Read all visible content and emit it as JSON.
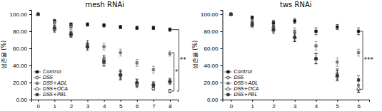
{
  "chart_data": [
    {
      "type": "scatter",
      "title": "mesh RNAi",
      "y_label": "생존율 (%)",
      "x": [
        0,
        1,
        2,
        3,
        4,
        5,
        6,
        7,
        8
      ],
      "xlim": [
        -0.4,
        8.5
      ],
      "xticks": [
        0,
        1,
        2,
        3,
        4,
        5,
        6,
        7,
        8
      ],
      "ylim": [
        0,
        105
      ],
      "yticks": [
        {
          "value": 0,
          "label": "0.00"
        },
        {
          "value": 20,
          "label": "20.00"
        },
        {
          "value": 40,
          "label": "40.00"
        },
        {
          "value": 60,
          "label": "60.00"
        },
        {
          "value": 80,
          "label": "80.00"
        },
        {
          "value": 100,
          "label": "100.00"
        }
      ],
      "legend": "lower left",
      "grid": false,
      "series": [
        {
          "name": "Control",
          "color": "#111111",
          "marker": "square",
          "values": [
            100,
            92,
            88,
            88,
            87,
            85,
            84,
            84,
            82
          ],
          "errors": [
            0,
            2,
            2,
            2,
            2,
            2,
            2,
            2,
            2
          ]
        },
        {
          "name": "DSS",
          "color": "#111111",
          "marker": "circle-open",
          "values": [
            100,
            82,
            76,
            65,
            47,
            28,
            17,
            13,
            10
          ],
          "errors": [
            0,
            3,
            3,
            4,
            5,
            5,
            3,
            2,
            2
          ]
        },
        {
          "name": "DSS+ADL",
          "color": "#777777",
          "marker": "square",
          "values": [
            100,
            90,
            85,
            63,
            62,
            55,
            43,
            35,
            54
          ],
          "errors": [
            0,
            2,
            3,
            3,
            4,
            4,
            4,
            4,
            3
          ]
        },
        {
          "name": "DSS+OCA",
          "color": "#444444",
          "marker": "triangle-open",
          "values": [
            100,
            84,
            77,
            62,
            44,
            30,
            20,
            18,
            22
          ],
          "errors": [
            0,
            3,
            3,
            4,
            5,
            5,
            4,
            3,
            3
          ]
        },
        {
          "name": "DSS+PBL",
          "color": "#333333",
          "marker": "square",
          "values": [
            100,
            84,
            77,
            62,
            45,
            29,
            20,
            17,
            21
          ],
          "errors": [
            0,
            3,
            3,
            4,
            5,
            5,
            4,
            3,
            3
          ]
        }
      ],
      "annotations": [
        {
          "text": "*",
          "y": [
            55,
            10
          ]
        },
        {
          "text": "**",
          "y": [
            82,
            10
          ]
        }
      ]
    },
    {
      "type": "scatter",
      "title": "tws RNAi",
      "y_label": "생존율 (%)",
      "x": [
        0,
        1,
        2,
        3,
        4,
        5,
        6
      ],
      "xlim": [
        -0.4,
        6.5
      ],
      "xticks": [
        0,
        1,
        2,
        3,
        4,
        5,
        6
      ],
      "ylim": [
        0,
        105
      ],
      "yticks": [
        {
          "value": 0,
          "label": "0.00"
        },
        {
          "value": 20,
          "label": "20.00"
        },
        {
          "value": 40,
          "label": "40.00"
        },
        {
          "value": 60,
          "label": "60.00"
        },
        {
          "value": 80,
          "label": "80.00"
        },
        {
          "value": 100,
          "label": "100.00"
        }
      ],
      "legend": "lower left",
      "grid": false,
      "series": [
        {
          "name": "Control",
          "color": "#111111",
          "marker": "square",
          "values": [
            100,
            96,
            90,
            92,
            80,
            85,
            80
          ],
          "errors": [
            0,
            2,
            3,
            3,
            4,
            3,
            4
          ]
        },
        {
          "name": "DSS",
          "color": "#111111",
          "marker": "circle-open",
          "values": [
            100,
            90,
            84,
            73,
            48,
            30,
            12
          ],
          "errors": [
            0,
            3,
            4,
            5,
            6,
            6,
            4
          ]
        },
        {
          "name": "DSS+ADL",
          "color": "#777777",
          "marker": "square",
          "values": [
            100,
            90,
            85,
            80,
            63,
            44,
            55
          ],
          "errors": [
            0,
            3,
            3,
            4,
            5,
            5,
            4
          ]
        },
        {
          "name": "DSS+OCA",
          "color": "#444444",
          "marker": "triangle-open",
          "values": [
            100,
            88,
            82,
            73,
            48,
            28,
            13
          ],
          "errors": [
            0,
            3,
            4,
            5,
            6,
            6,
            4
          ]
        },
        {
          "name": "DSS+PBL",
          "color": "#333333",
          "marker": "square",
          "values": [
            100,
            88,
            82,
            73,
            48,
            28,
            23
          ],
          "errors": [
            0,
            3,
            4,
            5,
            6,
            6,
            5
          ]
        }
      ],
      "annotations": [
        {
          "text": "***",
          "y": [
            80,
            12
          ]
        }
      ]
    }
  ]
}
